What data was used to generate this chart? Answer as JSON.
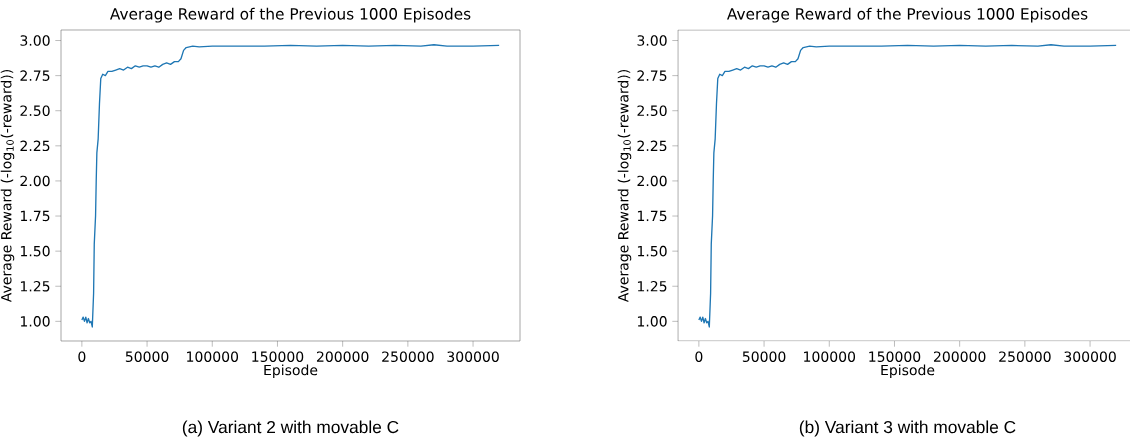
{
  "chart_data": [
    {
      "type": "line",
      "title": "Average Reward of the Previous 1000 Episodes",
      "xlabel": "Episode",
      "ylabel": "Average Reward (-log$_{10}$(-reward))",
      "annotations": [
        "(a)  Variant 2 with movable C"
      ],
      "x": [
        0,
        1000,
        2000,
        3000,
        4000,
        5000,
        6000,
        7000,
        8000,
        9000,
        9500,
        10500,
        11000,
        11500,
        12500,
        13500,
        14500,
        16000,
        18000,
        20000,
        23000,
        26000,
        29000,
        32000,
        35000,
        38000,
        41000,
        44000,
        47000,
        50000,
        53000,
        56000,
        59000,
        62000,
        65000,
        68000,
        71000,
        74000,
        76000,
        78000,
        80000,
        85000,
        90000,
        100000,
        120000,
        140000,
        160000,
        180000,
        200000,
        220000,
        240000,
        260000,
        270000,
        280000,
        300000,
        320000
      ],
      "values": [
        1.01,
        1.03,
        1.0,
        1.03,
        0.99,
        1.02,
        0.99,
        1.0,
        0.96,
        1.2,
        1.55,
        1.75,
        2.0,
        2.2,
        2.3,
        2.55,
        2.73,
        2.76,
        2.75,
        2.78,
        2.78,
        2.79,
        2.8,
        2.79,
        2.81,
        2.8,
        2.82,
        2.81,
        2.82,
        2.82,
        2.81,
        2.82,
        2.81,
        2.83,
        2.84,
        2.83,
        2.85,
        2.85,
        2.87,
        2.93,
        2.95,
        2.96,
        2.955,
        2.96,
        2.96,
        2.96,
        2.965,
        2.96,
        2.965,
        2.96,
        2.965,
        2.96,
        2.97,
        2.96,
        2.96,
        2.965
      ],
      "color": "#1f77b4",
      "xlim": [
        -16000,
        336000
      ],
      "ylim": [
        0.86,
        3.075
      ],
      "xticks": [
        0,
        50000,
        100000,
        150000,
        200000,
        250000,
        300000
      ],
      "yticks": [
        {
          "value": 1,
          "label": "1.00"
        },
        {
          "value": 1.25,
          "label": "1.25"
        },
        {
          "value": 1.5,
          "label": "1.50"
        },
        {
          "value": 1.75,
          "label": "1.75"
        },
        {
          "value": 2,
          "label": "2.00"
        },
        {
          "value": 2.25,
          "label": "2.25"
        },
        {
          "value": 2.5,
          "label": "2.50"
        },
        {
          "value": 2.75,
          "label": "2.75"
        },
        {
          "value": 3,
          "label": "3.00"
        }
      ]
    },
    {
      "type": "line",
      "title": "Average Reward of the Previous 1000 Episodes",
      "xlabel": "Episode",
      "ylabel": "Average Reward (-log$_{10}$(-reward))",
      "annotations": [
        "(b)  Variant 3 with movable C"
      ],
      "x": [
        0,
        1000,
        2000,
        3000,
        4000,
        5000,
        6000,
        7000,
        8000,
        9000,
        9500,
        10500,
        11000,
        11500,
        12500,
        13500,
        14500,
        16000,
        18000,
        20000,
        23000,
        26000,
        29000,
        32000,
        35000,
        38000,
        41000,
        44000,
        47000,
        50000,
        53000,
        56000,
        59000,
        62000,
        65000,
        68000,
        71000,
        74000,
        76000,
        78000,
        80000,
        85000,
        90000,
        100000,
        120000,
        140000,
        160000,
        180000,
        200000,
        220000,
        240000,
        260000,
        270000,
        280000,
        300000,
        320000
      ],
      "values": [
        1.01,
        1.03,
        1.0,
        1.03,
        0.99,
        1.02,
        0.99,
        1.0,
        0.96,
        1.2,
        1.55,
        1.75,
        2.0,
        2.2,
        2.3,
        2.55,
        2.73,
        2.76,
        2.75,
        2.78,
        2.78,
        2.79,
        2.8,
        2.79,
        2.81,
        2.8,
        2.82,
        2.81,
        2.82,
        2.82,
        2.81,
        2.82,
        2.81,
        2.83,
        2.84,
        2.83,
        2.85,
        2.85,
        2.87,
        2.93,
        2.95,
        2.96,
        2.955,
        2.96,
        2.96,
        2.96,
        2.965,
        2.96,
        2.965,
        2.96,
        2.965,
        2.96,
        2.97,
        2.96,
        2.96,
        2.965
      ],
      "color": "#1f77b4",
      "xlim": [
        -16000,
        336000
      ],
      "ylim": [
        0.86,
        3.075
      ],
      "xticks": [
        0,
        50000,
        100000,
        150000,
        200000,
        250000,
        300000
      ],
      "yticks": [
        {
          "value": 1,
          "label": "1.00"
        },
        {
          "value": 1.25,
          "label": "1.25"
        },
        {
          "value": 1.5,
          "label": "1.50"
        },
        {
          "value": 1.75,
          "label": "1.75"
        },
        {
          "value": 2,
          "label": "2.00"
        },
        {
          "value": 2.25,
          "label": "2.25"
        },
        {
          "value": 2.5,
          "label": "2.50"
        },
        {
          "value": 2.75,
          "label": "2.75"
        },
        {
          "value": 3,
          "label": "3.00"
        }
      ]
    }
  ]
}
